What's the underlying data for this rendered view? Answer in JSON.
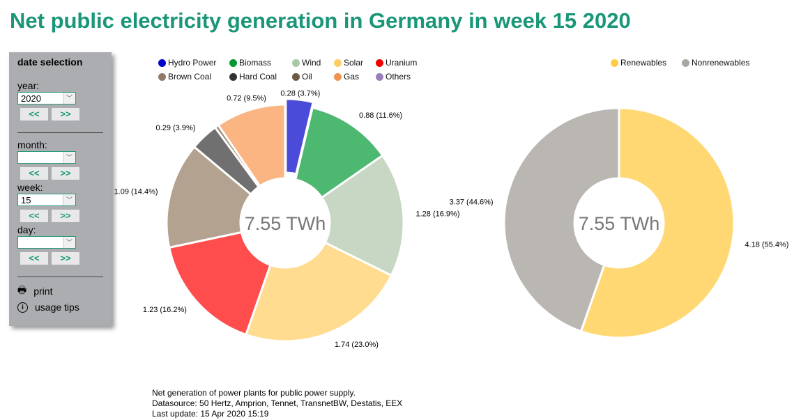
{
  "title": "Net public electricity generation in Germany in week 15 2020",
  "sidebar": {
    "heading": "date selection",
    "year_label": "year:",
    "year_value": "2020",
    "month_label": "month:",
    "month_value": "",
    "week_label": "week:",
    "week_value": "15",
    "day_label": "day:",
    "day_value": "",
    "prev": "<<",
    "next": ">>",
    "print": "print",
    "usage_tips": "usage tips"
  },
  "footer": {
    "line1": "Net generation of power plants for public power supply.",
    "line2": "Datasource: 50 Hertz, Amprion, Tennet, TransnetBW, Destatis, EEX",
    "line3": "Last update: 15 Apr 2020 15:19"
  },
  "chart_data": [
    {
      "type": "pie",
      "variant": "donut",
      "center_label": "7.55 TWh",
      "unit": "TWh",
      "legend": [
        {
          "name": "Hydro Power",
          "color": "#0000cc"
        },
        {
          "name": "Biomass",
          "color": "#009933"
        },
        {
          "name": "Wind",
          "color": "#a8c8a8"
        },
        {
          "name": "Solar",
          "color": "#ffcc66"
        },
        {
          "name": "Uranium",
          "color": "#ee0000"
        },
        {
          "name": "Brown Coal",
          "color": "#8f7b65"
        },
        {
          "name": "Hard Coal",
          "color": "#333333"
        },
        {
          "name": "Oil",
          "color": "#6e5a44"
        },
        {
          "name": "Gas",
          "color": "#f0944d"
        },
        {
          "name": "Others",
          "color": "#9980b8"
        }
      ],
      "slices": [
        {
          "name": "Hydro Power",
          "value": 0.28,
          "label": "0.28 (3.7%)",
          "color": "#4b4bd9",
          "exploded": true
        },
        {
          "name": "Biomass",
          "value": 0.88,
          "label": "0.88 (11.6%)",
          "color": "#4db870"
        },
        {
          "name": "Wind",
          "value": 1.28,
          "label": "1.28 (16.9%)",
          "color": "#c7d7c3"
        },
        {
          "name": "Solar",
          "value": 1.74,
          "label": "1.74 (23.0%)",
          "color": "#ffdc8f"
        },
        {
          "name": "Uranium",
          "value": 1.23,
          "label": "1.23 (16.2%)",
          "color": "#ff4d4d"
        },
        {
          "name": "Brown Coal",
          "value": 1.09,
          "label": "1.09 (14.4%)",
          "color": "#b3a28f"
        },
        {
          "name": "Hard Coal",
          "value": 0.29,
          "label": "0.29 (3.9%)",
          "color": "#707070"
        },
        {
          "name": "Oil",
          "value": 0.04,
          "label": "",
          "color": "#9a8a78"
        },
        {
          "name": "Gas",
          "value": 0.72,
          "label": "0.72 (9.5%)",
          "color": "#fbb582"
        }
      ]
    },
    {
      "type": "pie",
      "variant": "donut",
      "center_label": "7.55 TWh",
      "unit": "TWh",
      "legend": [
        {
          "name": "Renewables",
          "color": "#ffcc44"
        },
        {
          "name": "Nonrenewables",
          "color": "#aaa6a2"
        }
      ],
      "slices": [
        {
          "name": "Renewables",
          "value": 4.18,
          "label": "4.18 (55.4%)",
          "color": "#ffd873"
        },
        {
          "name": "Nonrenewables",
          "value": 3.37,
          "label": "3.37 (44.6%)",
          "color": "#bab6b2"
        }
      ]
    }
  ]
}
